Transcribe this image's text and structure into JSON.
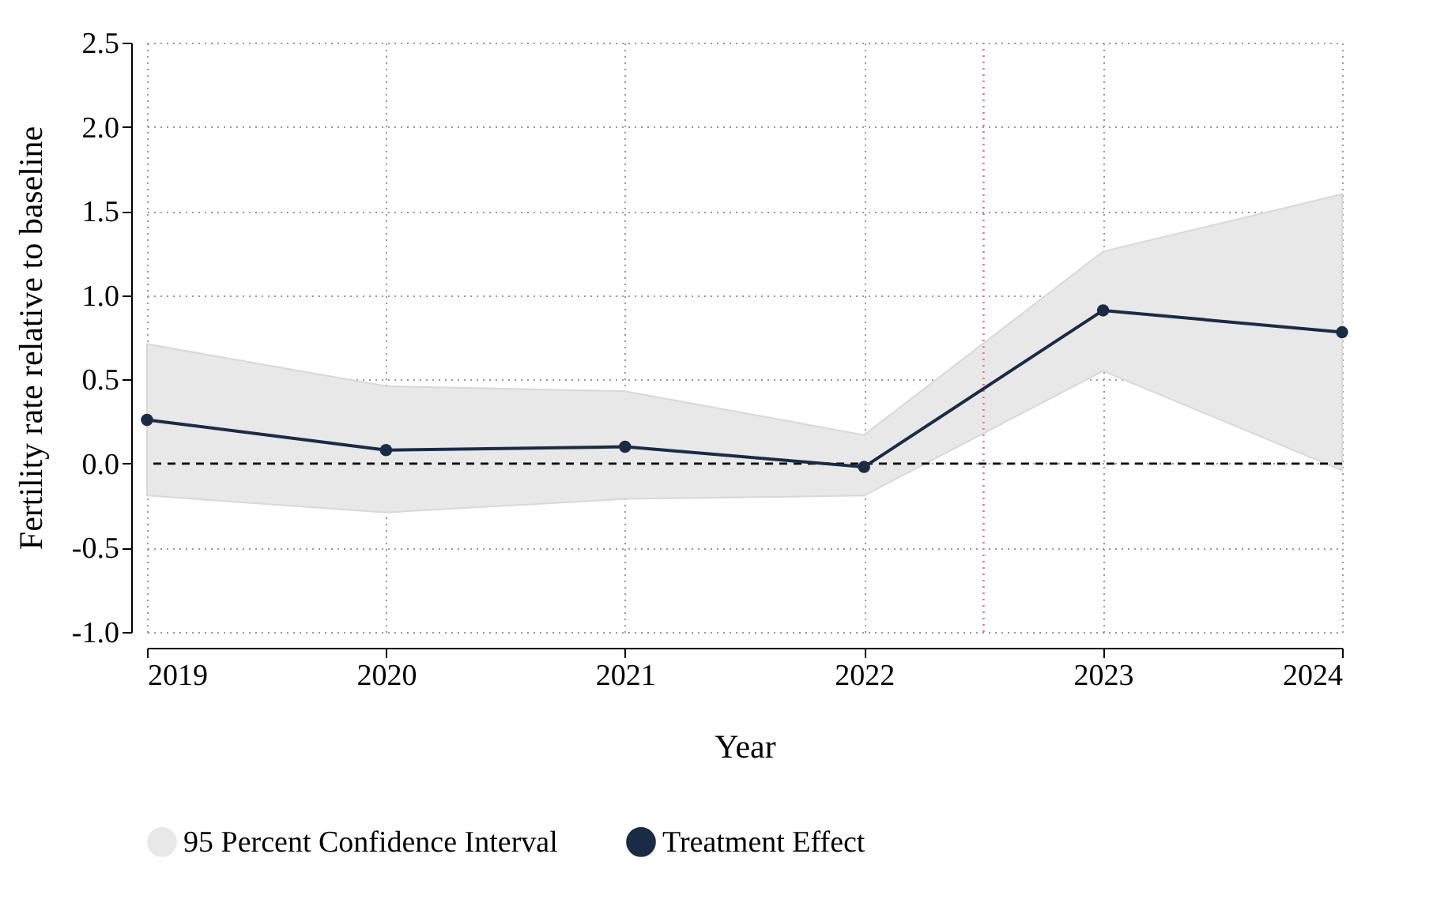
{
  "chart_data": {
    "type": "line",
    "xlabel": "Year",
    "ylabel": "Fertility rate relative to baseline",
    "x": [
      2019,
      2020,
      2021,
      2022,
      2023,
      2024
    ],
    "series": [
      {
        "type": "line",
        "name": "Treatment Effect",
        "color": "#1a2b45",
        "values": [
          0.26,
          0.08,
          0.1,
          -0.02,
          0.91,
          0.78
        ],
        "lower": [
          -0.19,
          -0.29,
          -0.21,
          -0.19,
          0.55,
          -0.04
        ],
        "upper": [
          0.71,
          0.46,
          0.43,
          0.17,
          1.26,
          1.6
        ],
        "marker": "circle",
        "line_style": "solid"
      }
    ],
    "annotations": [
      "95 Percent Confidence Interval"
    ],
    "xlim": [
      2019,
      2024
    ],
    "xticks": [
      2019,
      2020,
      2021,
      2022,
      2023,
      2024
    ],
    "ylim": [
      -1.0,
      2.5
    ],
    "yticks": [
      {
        "value": -1,
        "label": "-1.0"
      },
      {
        "value": -0.5,
        "label": "-0.5"
      },
      {
        "value": 0,
        "label": "0.0"
      },
      {
        "value": 0.5,
        "label": "0.5"
      },
      {
        "value": 1,
        "label": "1.0"
      },
      {
        "value": 1.5,
        "label": "1.5"
      },
      {
        "value": 2,
        "label": "2.0"
      },
      {
        "value": 2.5,
        "label": "2.5"
      }
    ],
    "ref_lines": [
      {
        "axis": "y",
        "value": 0,
        "color": "#000000",
        "line_style": "dashed"
      },
      {
        "axis": "x",
        "value": 2022.5,
        "color": "#e8708a",
        "line_style": "dotted"
      }
    ],
    "grid": true,
    "legend": "bottom"
  }
}
